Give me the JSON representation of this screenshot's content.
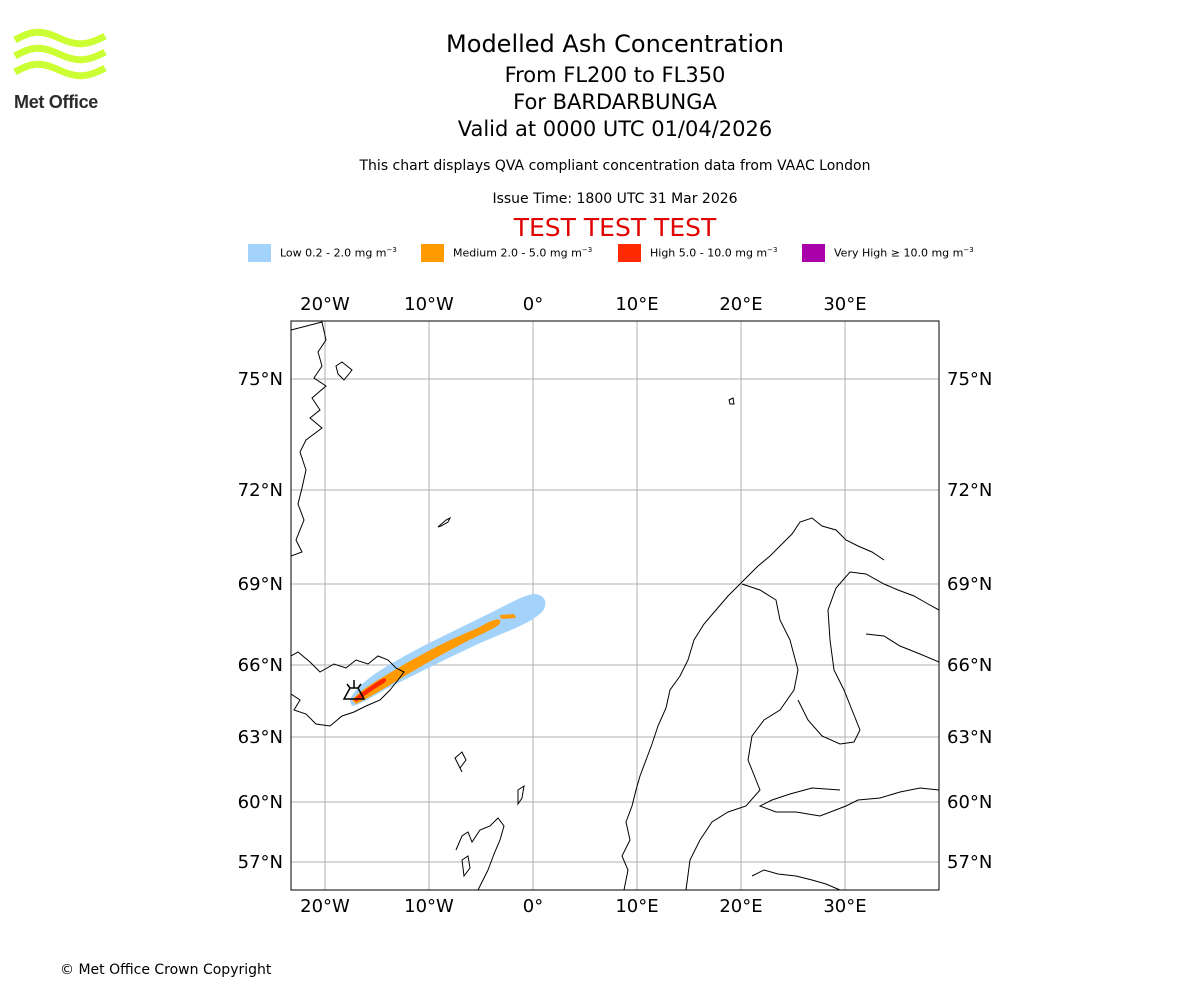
{
  "header": {
    "logo_text": "Met Office",
    "title": "Modelled Ash Concentration",
    "subtitle_levels": "From FL200 to FL350",
    "subtitle_volcano": "For BARDARBUNGA",
    "subtitle_valid": "Valid at 0000 UTC 01/04/2026",
    "description": "This chart displays QVA compliant concentration data from VAAC London",
    "issue_time": "Issue Time: 1800 UTC 31 Mar 2026",
    "test_banner": "TEST TEST TEST"
  },
  "legend": [
    {
      "label": "Low 0.2 - 2.0 mg m",
      "exp": "−3",
      "color": "#a3d3fb"
    },
    {
      "label": "Medium 2.0 - 5.0 mg m",
      "exp": "−3",
      "color": "#ff9a00"
    },
    {
      "label": "High 5.0 - 10.0 mg m",
      "exp": "−3",
      "color": "#ff2a00"
    },
    {
      "label": "Very High  ≥  10.0 mg m",
      "exp": "−3",
      "color": "#aa00aa"
    }
  ],
  "map": {
    "lon_ticks": [
      "20°W",
      "10°W",
      "0°",
      "10°E",
      "20°E",
      "30°E"
    ],
    "lat_ticks": [
      "75°N",
      "72°N",
      "69°N",
      "66°N",
      "63°N",
      "60°N",
      "57°N"
    ],
    "colors": {
      "grid": "#b0b0b0",
      "coast": "#000000",
      "frame": "#000000"
    }
  },
  "footer": {
    "copyright": "© Met Office Crown Copyright"
  }
}
